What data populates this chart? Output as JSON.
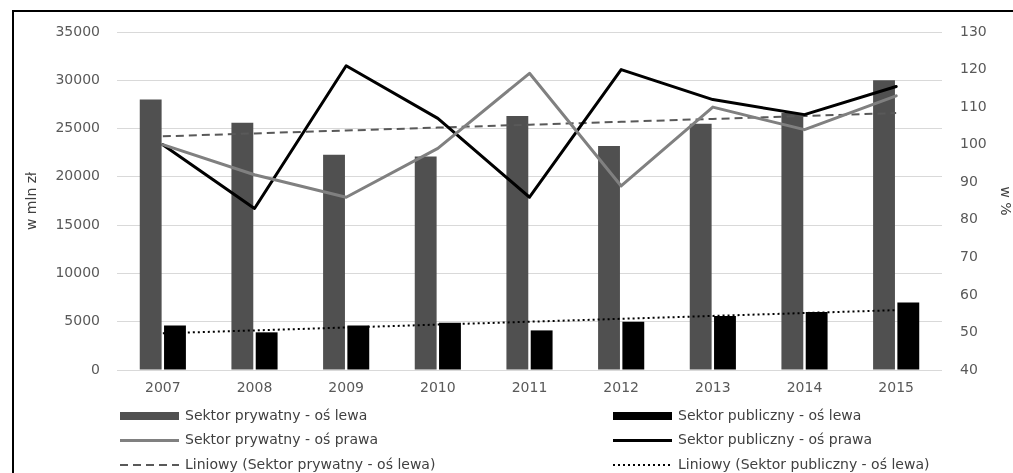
{
  "chart_data": {
    "type": "bar",
    "categories": [
      "2007",
      "2008",
      "2009",
      "2010",
      "2011",
      "2012",
      "2013",
      "2014",
      "2015"
    ],
    "series": [
      {
        "name": "Sektor prywatny - oś lewa",
        "color": "#505050",
        "values": [
          28000,
          25600,
          22300,
          22100,
          26300,
          23200,
          25500,
          26600,
          30000
        ]
      },
      {
        "name": "Sektor publiczny - oś lewa",
        "color": "#000000",
        "values": [
          4600,
          3900,
          4600,
          4900,
          4100,
          5000,
          5600,
          6000,
          7000
        ]
      },
      {
        "name": "Sektor prywatny - oś prawa",
        "type": "line",
        "axis": "y2",
        "color": "#808080",
        "values": [
          100,
          92,
          86,
          99,
          119,
          89,
          110,
          104,
          113
        ]
      },
      {
        "name": "Sektor publiczny - oś prawa",
        "type": "line",
        "axis": "y2",
        "color": "#000000",
        "values": [
          100,
          83,
          121,
          107,
          86,
          120,
          112,
          108,
          115.5
        ]
      },
      {
        "name": "Liniowy (Sektor prywatny - oś lewa)",
        "type": "line",
        "line_style": "dashed",
        "color": "#595959",
        "values": [
          24200,
          24500,
          24800,
          25100,
          25400,
          25700,
          26000,
          26300,
          26600
        ]
      },
      {
        "name": "Liniowy (Sektor publiczny - oś lewa)",
        "type": "line",
        "line_style": "dotted",
        "color": "#000000",
        "values": [
          3800,
          4100,
          4400,
          4700,
          5000,
          5300,
          5600,
          5900,
          6200
        ]
      }
    ],
    "ylabel": "w mln zł",
    "y2label": "w %",
    "ylim": [
      0,
      35000
    ],
    "yticks": [
      0,
      5000,
      10000,
      15000,
      20000,
      25000,
      30000,
      35000
    ],
    "y2lim": [
      40,
      130
    ],
    "y2ticks": [
      40,
      50,
      60,
      70,
      80,
      90,
      100,
      110,
      120,
      130
    ],
    "grid": "y",
    "legend": "bottom"
  }
}
